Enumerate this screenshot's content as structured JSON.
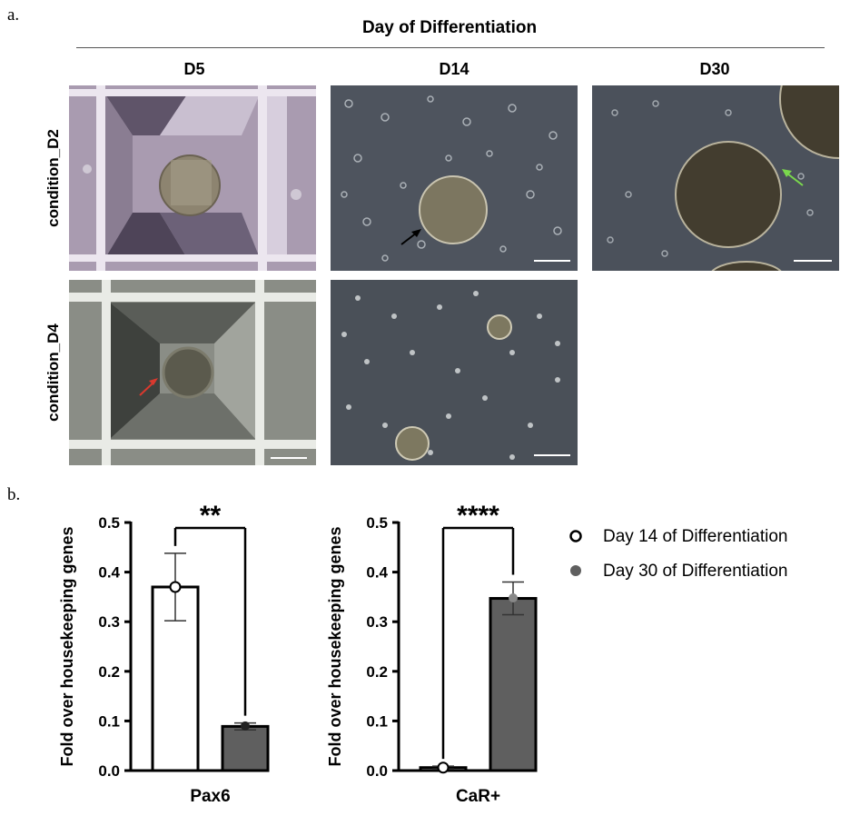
{
  "panel_a": {
    "letter": "a.",
    "header_title": "Day of Differentiation",
    "columns": [
      "D5",
      "D14",
      "D30"
    ],
    "rows": [
      "condition_D2",
      "condition_D4"
    ]
  },
  "panel_b": {
    "letter": "b."
  },
  "colors": {
    "day14_fill": "#ffffff",
    "day30_fill": "#5f5f5f",
    "axis": "#000000"
  },
  "chart_data": [
    {
      "type": "bar",
      "categories": [
        "Pax6"
      ],
      "xlabel": "Pax6",
      "ylabel": "Fold over housekeeping genes",
      "ylim": [
        0,
        0.5
      ],
      "yticks": [
        "0.0",
        "0.1",
        "0.2",
        "0.3",
        "0.4",
        "0.5"
      ],
      "significance": "**",
      "series": [
        {
          "name": "Day 14 of Differentiation",
          "values": [
            0.37
          ],
          "error": [
            0.068
          ],
          "point": 0.37
        },
        {
          "name": "Day 30 of Differentiation",
          "values": [
            0.089
          ],
          "error": [
            0.007
          ],
          "point": 0.09
        }
      ]
    },
    {
      "type": "bar",
      "categories": [
        "CaR+"
      ],
      "xlabel": "CaR+",
      "ylabel": "Fold over housekeeping genes",
      "ylim": [
        0,
        0.5
      ],
      "yticks": [
        "0.0",
        "0.1",
        "0.2",
        "0.3",
        "0.4",
        "0.5"
      ],
      "significance": "****",
      "series": [
        {
          "name": "Day 14 of Differentiation",
          "values": [
            0.006
          ],
          "error": [
            0.003
          ],
          "point": 0.006
        },
        {
          "name": "Day 30 of Differentiation",
          "values": [
            0.347
          ],
          "error": [
            0.033
          ],
          "point": 0.348
        }
      ]
    }
  ],
  "legend": {
    "placement": "right",
    "items": [
      "Day 14 of Differentiation",
      "Day 30 of Differentiation"
    ]
  }
}
